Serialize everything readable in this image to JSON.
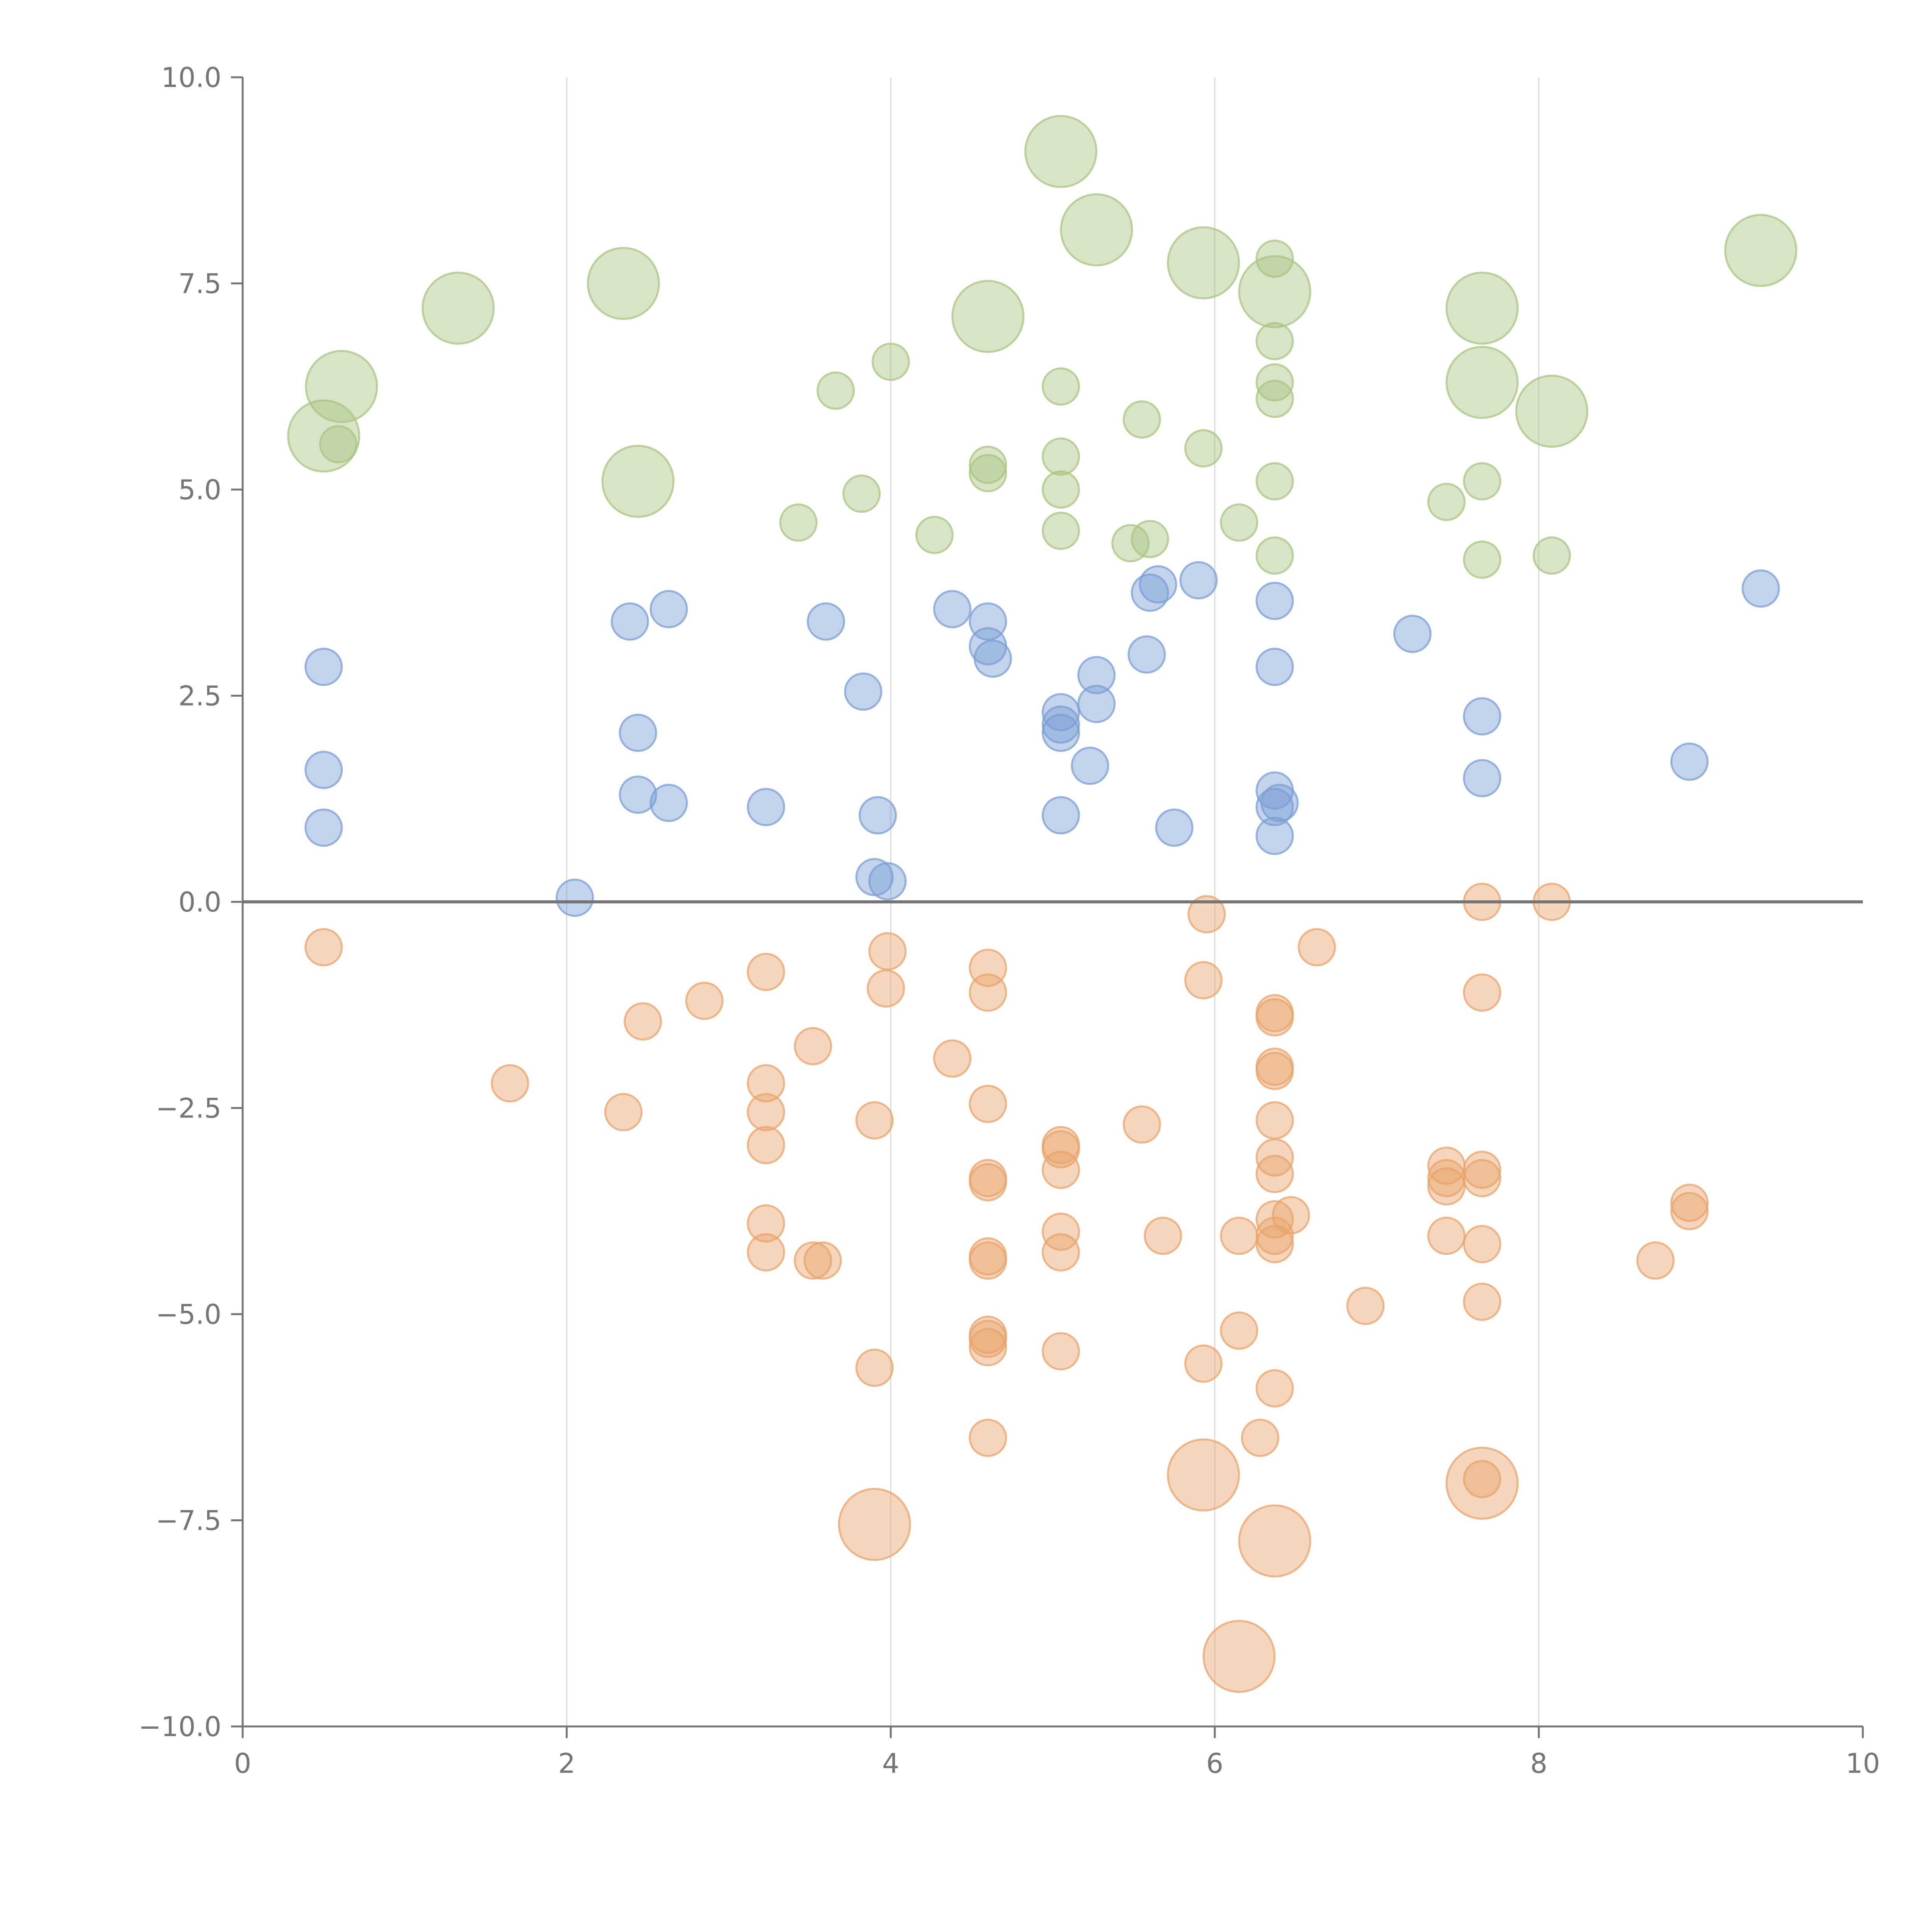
{
  "chart_data": {
    "type": "scatter",
    "title": "",
    "xlabel": "",
    "ylabel": "",
    "xlim": [
      0,
      10
    ],
    "ylim": [
      -10,
      10
    ],
    "x_ticks": [
      0,
      2,
      4,
      6,
      8,
      10
    ],
    "x_tick_labels": [
      "0",
      "2",
      "4",
      "6",
      "8",
      "10"
    ],
    "y_ticks": [
      10,
      7.5,
      5,
      2.5,
      0,
      -2.5,
      -5,
      -7.5,
      -10
    ],
    "y_tick_labels": [
      "10.0",
      "7.5",
      "5.0",
      "2.5",
      "0.0",
      "−2.5",
      "−5.0",
      "−7.5",
      "−10.0"
    ],
    "grid": {
      "vertical": true,
      "horizontal": false
    },
    "zero_line": true,
    "legend": "none",
    "marker_opacity": 0.45,
    "series": [
      {
        "color": "#a9c480",
        "points": [
          [
            5.05,
            9.1,
            "large"
          ],
          [
            5.27,
            8.15,
            "large"
          ],
          [
            5.93,
            7.75,
            "large"
          ],
          [
            6.37,
            7.4,
            "large"
          ],
          [
            7.65,
            7.2,
            "large"
          ],
          [
            9.37,
            7.9,
            "large"
          ],
          [
            1.33,
            7.2,
            "large"
          ],
          [
            2.35,
            7.5,
            "large"
          ],
          [
            4.6,
            7.1,
            "large"
          ],
          [
            0.61,
            6.25,
            "large"
          ],
          [
            0.5,
            5.65,
            "large"
          ],
          [
            2.44,
            5.1,
            "large"
          ],
          [
            7.65,
            6.3,
            "large"
          ],
          [
            8.08,
            5.95,
            "large"
          ],
          [
            6.37,
            7.8,
            "small"
          ],
          [
            6.37,
            6.8,
            "small"
          ],
          [
            6.37,
            6.3,
            "small"
          ],
          [
            6.37,
            6.1,
            "small"
          ],
          [
            6.37,
            5.1,
            "small"
          ],
          [
            6.37,
            4.2,
            "small"
          ],
          [
            4.0,
            6.55,
            "small"
          ],
          [
            3.66,
            6.2,
            "small"
          ],
          [
            5.05,
            6.25,
            "small"
          ],
          [
            5.55,
            5.85,
            "small"
          ],
          [
            5.93,
            5.5,
            "small"
          ],
          [
            5.05,
            5.4,
            "small"
          ],
          [
            5.05,
            5.0,
            "small"
          ],
          [
            5.05,
            4.5,
            "small"
          ],
          [
            4.6,
            5.3,
            "small"
          ],
          [
            4.6,
            5.2,
            "small"
          ],
          [
            3.82,
            4.95,
            "small"
          ],
          [
            3.43,
            4.6,
            "small"
          ],
          [
            4.27,
            4.45,
            "small"
          ],
          [
            5.48,
            4.35,
            "small"
          ],
          [
            5.6,
            4.4,
            "small"
          ],
          [
            6.15,
            4.6,
            "small"
          ],
          [
            7.43,
            4.85,
            "small"
          ],
          [
            7.65,
            5.1,
            "small"
          ],
          [
            7.65,
            4.15,
            "small"
          ],
          [
            8.08,
            4.2,
            "small"
          ],
          [
            0.59,
            5.55,
            "small"
          ]
        ]
      },
      {
        "color": "#7a9ed4",
        "points": [
          [
            0.5,
            2.85,
            "small"
          ],
          [
            0.5,
            1.6,
            "small"
          ],
          [
            0.5,
            0.9,
            "small"
          ],
          [
            2.05,
            0.05,
            "small"
          ],
          [
            2.39,
            3.4,
            "small"
          ],
          [
            2.63,
            3.55,
            "small"
          ],
          [
            2.44,
            2.05,
            "small"
          ],
          [
            2.44,
            1.3,
            "small"
          ],
          [
            2.63,
            1.2,
            "small"
          ],
          [
            3.23,
            1.15,
            "small"
          ],
          [
            3.6,
            3.4,
            "small"
          ],
          [
            3.83,
            2.55,
            "small"
          ],
          [
            3.92,
            1.05,
            "small"
          ],
          [
            3.9,
            0.3,
            "small"
          ],
          [
            3.98,
            0.25,
            "small"
          ],
          [
            4.38,
            3.55,
            "small"
          ],
          [
            4.6,
            3.4,
            "small"
          ],
          [
            4.6,
            3.1,
            "small"
          ],
          [
            4.63,
            2.95,
            "small"
          ],
          [
            5.05,
            2.3,
            "small"
          ],
          [
            5.05,
            2.15,
            "small"
          ],
          [
            5.05,
            2.05,
            "small"
          ],
          [
            5.05,
            1.05,
            "small"
          ],
          [
            5.27,
            2.75,
            "small"
          ],
          [
            5.27,
            2.4,
            "small"
          ],
          [
            5.23,
            1.65,
            "small"
          ],
          [
            5.58,
            3.0,
            "small"
          ],
          [
            5.6,
            3.75,
            "small"
          ],
          [
            5.65,
            3.85,
            "small"
          ],
          [
            5.9,
            3.9,
            "small"
          ],
          [
            5.75,
            0.9,
            "small"
          ],
          [
            6.37,
            3.65,
            "small"
          ],
          [
            6.37,
            2.85,
            "small"
          ],
          [
            6.37,
            1.35,
            "small"
          ],
          [
            6.37,
            1.15,
            "small"
          ],
          [
            6.4,
            1.2,
            "small"
          ],
          [
            6.37,
            0.8,
            "small"
          ],
          [
            7.22,
            3.25,
            "small"
          ],
          [
            7.65,
            2.25,
            "small"
          ],
          [
            7.65,
            1.5,
            "small"
          ],
          [
            8.93,
            1.7,
            "small"
          ],
          [
            9.37,
            3.8,
            "small"
          ]
        ]
      },
      {
        "color": "#e8a36b",
        "points": [
          [
            0.5,
            -0.55,
            "small"
          ],
          [
            1.65,
            -2.2,
            "small"
          ],
          [
            2.35,
            -2.55,
            "small"
          ],
          [
            2.47,
            -1.45,
            "small"
          ],
          [
            2.85,
            -1.2,
            "small"
          ],
          [
            3.23,
            -0.85,
            "small"
          ],
          [
            3.23,
            -2.2,
            "small"
          ],
          [
            3.23,
            -2.55,
            "small"
          ],
          [
            3.23,
            -2.95,
            "small"
          ],
          [
            3.23,
            -3.9,
            "small"
          ],
          [
            3.23,
            -4.25,
            "small"
          ],
          [
            3.52,
            -1.75,
            "small"
          ],
          [
            3.52,
            -4.35,
            "small"
          ],
          [
            3.58,
            -4.35,
            "small"
          ],
          [
            3.98,
            -0.6,
            "small"
          ],
          [
            3.97,
            -1.05,
            "small"
          ],
          [
            3.9,
            -2.65,
            "small"
          ],
          [
            3.9,
            -5.65,
            "small"
          ],
          [
            4.38,
            -1.9,
            "small"
          ],
          [
            4.6,
            -0.8,
            "small"
          ],
          [
            4.6,
            -1.1,
            "small"
          ],
          [
            4.6,
            -2.45,
            "small"
          ],
          [
            4.6,
            -3.35,
            "small"
          ],
          [
            4.6,
            -3.4,
            "small"
          ],
          [
            4.6,
            -4.3,
            "small"
          ],
          [
            4.6,
            -4.35,
            "small"
          ],
          [
            4.6,
            -5.25,
            "small"
          ],
          [
            4.6,
            -5.3,
            "small"
          ],
          [
            4.6,
            -5.4,
            "small"
          ],
          [
            4.6,
            -6.5,
            "small"
          ],
          [
            5.05,
            -2.95,
            "small"
          ],
          [
            5.05,
            -3.0,
            "small"
          ],
          [
            5.05,
            -3.25,
            "small"
          ],
          [
            5.05,
            -4.0,
            "small"
          ],
          [
            5.05,
            -4.25,
            "small"
          ],
          [
            5.05,
            -5.45,
            "small"
          ],
          [
            5.55,
            -2.7,
            "small"
          ],
          [
            5.68,
            -4.05,
            "small"
          ],
          [
            5.95,
            -0.15,
            "small"
          ],
          [
            5.93,
            -0.95,
            "small"
          ],
          [
            5.93,
            -5.6,
            "small"
          ],
          [
            6.15,
            -4.05,
            "small"
          ],
          [
            6.15,
            -5.2,
            "small"
          ],
          [
            6.28,
            -6.5,
            "small"
          ],
          [
            6.37,
            -1.35,
            "small"
          ],
          [
            6.37,
            -1.4,
            "small"
          ],
          [
            6.37,
            -2.0,
            "small"
          ],
          [
            6.37,
            -2.05,
            "small"
          ],
          [
            6.37,
            -2.65,
            "small"
          ],
          [
            6.37,
            -3.1,
            "small"
          ],
          [
            6.37,
            -3.3,
            "small"
          ],
          [
            6.37,
            -3.85,
            "small"
          ],
          [
            6.37,
            -4.05,
            "small"
          ],
          [
            6.37,
            -4.15,
            "small"
          ],
          [
            6.47,
            -3.8,
            "small"
          ],
          [
            6.37,
            -5.9,
            "small"
          ],
          [
            6.63,
            -0.55,
            "small"
          ],
          [
            6.93,
            -4.9,
            "small"
          ],
          [
            7.43,
            -3.2,
            "small"
          ],
          [
            7.43,
            -3.35,
            "small"
          ],
          [
            7.43,
            -3.45,
            "small"
          ],
          [
            7.43,
            -4.05,
            "small"
          ],
          [
            7.65,
            0.0,
            "small"
          ],
          [
            7.65,
            -1.1,
            "small"
          ],
          [
            7.65,
            -3.25,
            "small"
          ],
          [
            7.65,
            -3.35,
            "small"
          ],
          [
            7.65,
            -4.15,
            "small"
          ],
          [
            7.65,
            -4.85,
            "small"
          ],
          [
            7.65,
            -7.0,
            "small"
          ],
          [
            8.08,
            0.0,
            "small"
          ],
          [
            8.72,
            -4.35,
            "small"
          ],
          [
            8.93,
            -3.65,
            "small"
          ],
          [
            8.93,
            -3.75,
            "small"
          ],
          [
            3.9,
            -7.55,
            "large"
          ],
          [
            5.93,
            -6.95,
            "large"
          ],
          [
            6.37,
            -7.75,
            "large"
          ],
          [
            7.65,
            -7.05,
            "large"
          ],
          [
            6.15,
            -9.15,
            "large"
          ]
        ]
      }
    ]
  }
}
